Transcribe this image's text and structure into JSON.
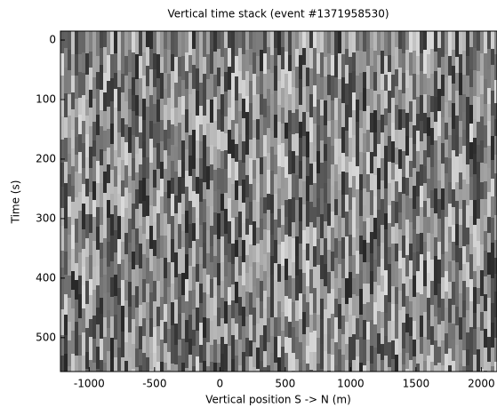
{
  "chart_data": {
    "type": "image",
    "title": "Vertical time stack (event #1371958530)",
    "x_label": "Vertical position S -> N (m)",
    "y_label": "Time (s)",
    "xlim": [
      -1220,
      2120
    ],
    "xticks": [
      -1000,
      -500,
      0,
      500,
      1000,
      1500,
      2000
    ],
    "ylim": [
      -15,
      557
    ],
    "y_inverted": true,
    "yticks": [
      0,
      100,
      200,
      300,
      400,
      500
    ],
    "colormap": "gray"
  }
}
